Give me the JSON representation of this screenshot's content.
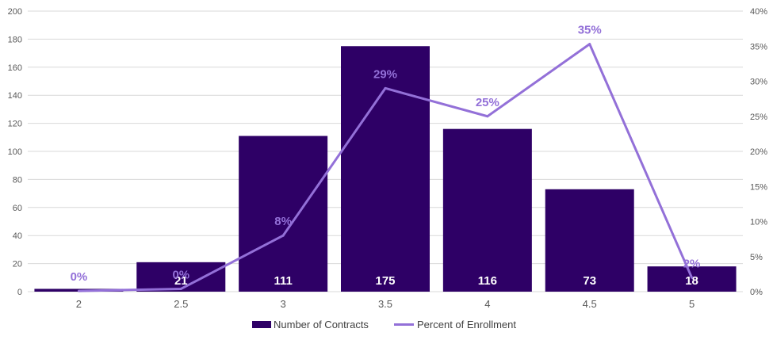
{
  "chart_data": {
    "type": "bar",
    "categories": [
      "2",
      "2.5",
      "3",
      "3.5",
      "4",
      "4.5",
      "5"
    ],
    "series": [
      {
        "name": "Number of Contracts",
        "kind": "bar",
        "axis": "left",
        "values": [
          2,
          21,
          111,
          175,
          116,
          73,
          18
        ],
        "labels": [
          "",
          "21",
          "111",
          "175",
          "116",
          "73",
          "18"
        ]
      },
      {
        "name": "Percent of Enrollment",
        "kind": "line",
        "axis": "right",
        "values": [
          0.1,
          0.4,
          8,
          29,
          25,
          35.3,
          2
        ],
        "labels": [
          "0%",
          "0%",
          "8%",
          "29%",
          "25%",
          "35%",
          "2%"
        ]
      }
    ],
    "ylim_left": [
      0,
      200
    ],
    "left_ticks": [
      "0",
      "20",
      "40",
      "60",
      "80",
      "100",
      "120",
      "140",
      "160",
      "180",
      "200"
    ],
    "ylim_right": [
      0,
      40
    ],
    "right_ticks": [
      "0%",
      "5%",
      "10%",
      "15%",
      "20%",
      "25%",
      "30%",
      "35%",
      "40%"
    ],
    "grid": true,
    "legend_position": "bottom",
    "colors": {
      "bar": "#2e0066",
      "line": "#9370d8",
      "grid": "#d9d9d9"
    }
  }
}
